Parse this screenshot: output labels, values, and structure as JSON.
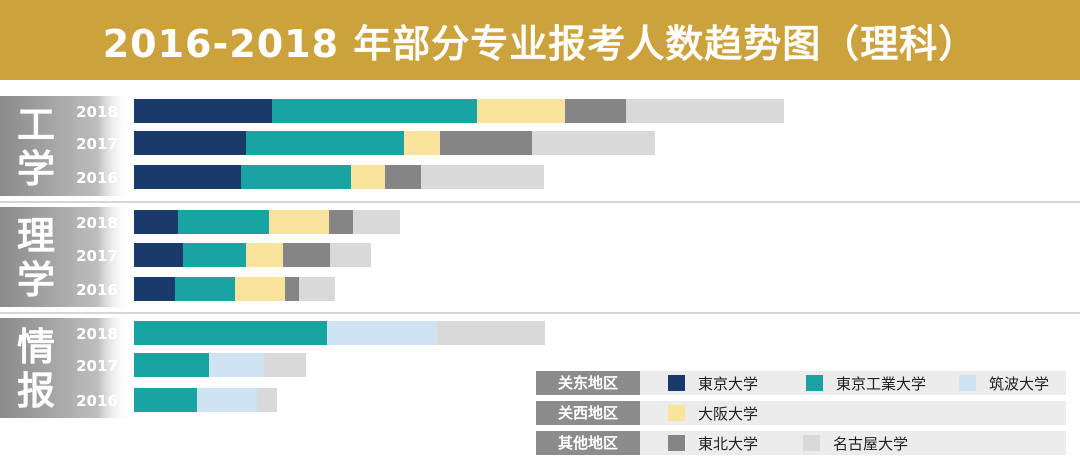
{
  "title": "2016-2018 年部分专业报考人数趋势图（理科）",
  "colors": {
    "title_bg": "#cba23c",
    "東京大学": "#1a3a6c",
    "東京工業大学": "#1aa3a3",
    "筑波大学": "#cfe3f2",
    "大阪大学": "#fae39c",
    "東北大学": "#858585",
    "名古屋大学": "#d9d9d9",
    "group_label_bg": "#8a8a8a",
    "region_label_bg": "#8c8c8c",
    "legend_bg": "#ececec"
  },
  "chart_data": {
    "type": "bar",
    "stacked": true,
    "orientation": "horizontal",
    "title": "2016-2018 年部分专业报考人数趋势图（理科）",
    "xlabel": "",
    "ylabel": "",
    "grid": false,
    "legend_position": "bottom-right",
    "stack_order": [
      "東京大学",
      "東京工業大学",
      "筑波大学",
      "大阪大学",
      "東北大学",
      "名古屋大学"
    ],
    "groups": [
      {
        "label": "工学",
        "rows": [
          {
            "year": "2018",
            "values": {
              "東京大学": 138,
              "東京工業大学": 205,
              "筑波大学": 0,
              "大阪大学": 88,
              "東北大学": 61,
              "名古屋大学": 158
            }
          },
          {
            "year": "2017",
            "values": {
              "東京大学": 112,
              "東京工業大学": 158,
              "筑波大学": 0,
              "大阪大学": 36,
              "東北大学": 92,
              "名古屋大学": 123
            }
          },
          {
            "year": "2016",
            "values": {
              "東京大学": 107,
              "東京工業大学": 110,
              "筑波大学": 0,
              "大阪大学": 34,
              "東北大学": 36,
              "名古屋大学": 123
            }
          }
        ]
      },
      {
        "label": "理学",
        "rows": [
          {
            "year": "2018",
            "values": {
              "東京大学": 44,
              "東京工業大学": 91,
              "筑波大学": 0,
              "大阪大学": 60,
              "東北大学": 24,
              "名古屋大学": 47
            }
          },
          {
            "year": "2017",
            "values": {
              "東京大学": 49,
              "東京工業大学": 63,
              "筑波大学": 0,
              "大阪大学": 37,
              "東北大学": 47,
              "名古屋大学": 41
            }
          },
          {
            "year": "2016",
            "values": {
              "東京大学": 41,
              "東京工業大学": 60,
              "筑波大学": 0,
              "大阪大学": 50,
              "東北大学": 14,
              "名古屋大学": 36
            }
          }
        ]
      },
      {
        "label": "情报",
        "rows": [
          {
            "year": "2018",
            "values": {
              "東京大学": 0,
              "東京工業大学": 193,
              "筑波大学": 110,
              "大阪大学": 0,
              "東北大学": 0,
              "名古屋大学": 108
            }
          },
          {
            "year": "2017",
            "values": {
              "東京大学": 0,
              "東京工業大学": 75,
              "筑波大学": 55,
              "大阪大学": 0,
              "東北大学": 0,
              "名古屋大学": 42
            }
          },
          {
            "year": "2016",
            "values": {
              "東京大学": 0,
              "東京工業大学": 63,
              "筑波大学": 60,
              "大阪大学": 0,
              "東北大学": 0,
              "名古屋大学": 20
            }
          }
        ]
      }
    ],
    "legend": [
      {
        "region": "关东地区",
        "items": [
          "東京大学",
          "東京工業大学",
          "筑波大学"
        ]
      },
      {
        "region": "关西地区",
        "items": [
          "大阪大学"
        ]
      },
      {
        "region": "其他地区",
        "items": [
          "東北大学",
          "名古屋大学"
        ]
      }
    ]
  }
}
